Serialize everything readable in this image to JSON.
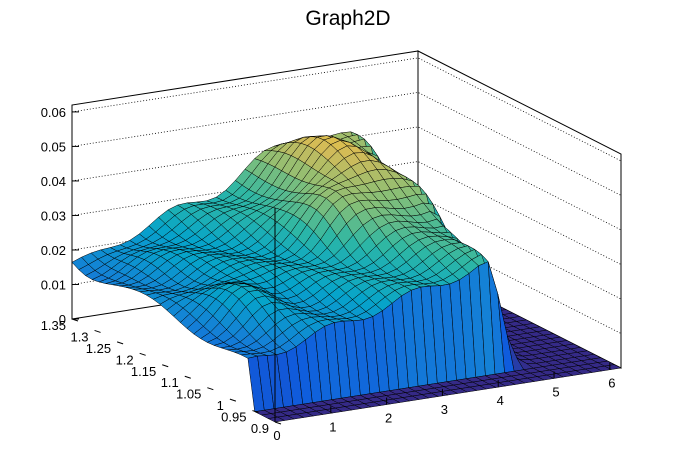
{
  "chart_data": {
    "type": "surface",
    "title": "Graph2D",
    "x_axis": {
      "range": [
        0,
        6.2
      ],
      "ticks": [
        0,
        1,
        2,
        3,
        4,
        5,
        6
      ],
      "tick_labels": [
        "0",
        "1",
        "2",
        "3",
        "4",
        "5",
        "6"
      ]
    },
    "y_axis": {
      "range": [
        0.9,
        1.35
      ],
      "ticks": [
        0.9,
        0.95,
        1.0,
        1.05,
        1.1,
        1.15,
        1.2,
        1.25,
        1.3,
        1.35
      ],
      "tick_labels": [
        "0.9",
        "0.95",
        "1",
        "1.05",
        "1.1",
        "1.15",
        "1.2",
        "1.25",
        "1.3",
        "1.35"
      ]
    },
    "z_axis": {
      "range": [
        0,
        0.062
      ],
      "ticks": [
        0,
        0.01,
        0.02,
        0.03,
        0.04,
        0.05,
        0.06
      ],
      "tick_labels": [
        "0",
        "0.01",
        "0.02",
        "0.03",
        "0.04",
        "0.05",
        "0.06"
      ]
    },
    "grid": "dotted on back walls",
    "colormap": "viridis-like (dark blue to yellow)",
    "colors": [
      "#352a87",
      "#0f5cdd",
      "#1481d6",
      "#06a4ca",
      "#2eb7a4",
      "#87bf77",
      "#d1bb59",
      "#fec832",
      "#f9fb0e"
    ],
    "surface_profile_along_x": {
      "x": [
        0,
        0.5,
        1.0,
        1.5,
        2.0,
        2.5,
        3.0,
        3.5,
        4.0,
        4.3,
        4.6,
        5.0,
        6.2
      ],
      "z": [
        0.02,
        0.022,
        0.025,
        0.03,
        0.034,
        0.04,
        0.044,
        0.048,
        0.056,
        0.05,
        0.0,
        0.0,
        0.0
      ]
    }
  }
}
